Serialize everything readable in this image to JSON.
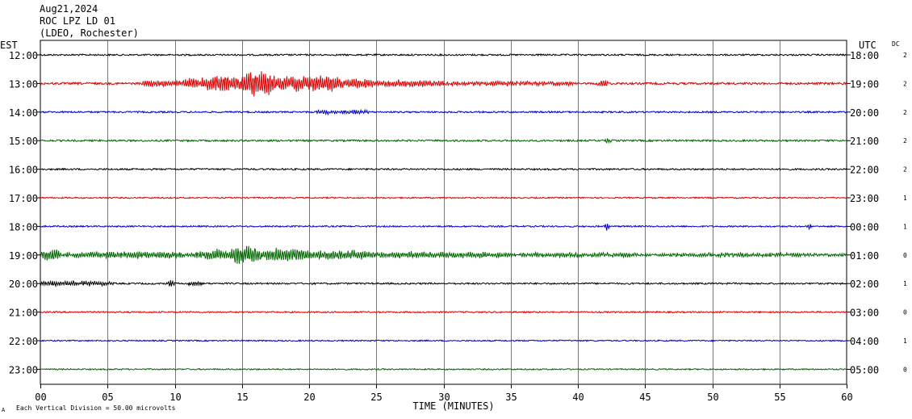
{
  "header": {
    "date": "Aug21,2024",
    "station": "ROC LPZ LD 01",
    "network": "(LDEO, Rochester)"
  },
  "chart_data": {
    "type": "line",
    "title": "ROC LPZ LD 01",
    "left_axis_label": "EST",
    "right_axis_label": "UTC",
    "dc_label": "DC",
    "xlabel": "TIME (MINUTES)",
    "xlim": [
      0,
      60
    ],
    "x_ticks": [
      "00",
      "05",
      "10",
      "15",
      "20",
      "25",
      "30",
      "35",
      "40",
      "45",
      "50",
      "55",
      "60"
    ],
    "grid": true,
    "scale_note": "Each Vertical Division =   50.00 microvolts",
    "colors": [
      "#000000",
      "#dd0000",
      "#0000cc",
      "#006600"
    ],
    "traces": [
      {
        "est": "12:00",
        "utc": "18:00",
        "dc": "2",
        "color": "#000000",
        "noise": 1.0,
        "events": []
      },
      {
        "est": "13:00",
        "utc": "19:00",
        "dc": "2",
        "color": "#dd0000",
        "noise": 1.3,
        "events": [
          {
            "start": 7.5,
            "end": 10.5,
            "amp": 4
          },
          {
            "start": 10.5,
            "end": 12.0,
            "amp": 6
          },
          {
            "start": 12.0,
            "end": 15.0,
            "amp": 11
          },
          {
            "start": 15.0,
            "end": 17.5,
            "amp": 16
          },
          {
            "start": 17.5,
            "end": 22.5,
            "amp": 10
          },
          {
            "start": 22.5,
            "end": 25.0,
            "amp": 6
          },
          {
            "start": 25.0,
            "end": 30.0,
            "amp": 4
          },
          {
            "start": 30.0,
            "end": 40.0,
            "amp": 2.5
          },
          {
            "start": 41.5,
            "end": 42.2,
            "amp": 4
          }
        ]
      },
      {
        "est": "14:00",
        "utc": "20:00",
        "dc": "2",
        "color": "#0000cc",
        "noise": 1.0,
        "events": [
          {
            "start": 20.5,
            "end": 24.5,
            "amp": 2.5
          }
        ]
      },
      {
        "est": "15:00",
        "utc": "21:00",
        "dc": "2",
        "color": "#006600",
        "noise": 1.1,
        "events": [
          {
            "start": 42.0,
            "end": 42.5,
            "amp": 3
          }
        ]
      },
      {
        "est": "16:00",
        "utc": "22:00",
        "dc": "2",
        "color": "#000000",
        "noise": 1.0,
        "events": []
      },
      {
        "est": "17:00",
        "utc": "23:00",
        "dc": "1",
        "color": "#dd0000",
        "noise": 0.8,
        "events": []
      },
      {
        "est": "18:00",
        "utc": "00:00",
        "dc": "1",
        "color": "#0000cc",
        "noise": 0.9,
        "events": [
          {
            "start": 42.0,
            "end": 42.3,
            "amp": 6
          },
          {
            "start": 57.0,
            "end": 57.4,
            "amp": 4
          }
        ]
      },
      {
        "est": "19:00",
        "utc": "01:00",
        "dc": "0",
        "color": "#006600",
        "noise": 1.2,
        "events": [
          {
            "start": 0.0,
            "end": 1.5,
            "amp": 7
          },
          {
            "start": 1.5,
            "end": 11.5,
            "amp": 4
          },
          {
            "start": 11.5,
            "end": 14.0,
            "amp": 7
          },
          {
            "start": 14.0,
            "end": 16.5,
            "amp": 12
          },
          {
            "start": 16.5,
            "end": 20.0,
            "amp": 9
          },
          {
            "start": 20.0,
            "end": 25.0,
            "amp": 6
          },
          {
            "start": 25.0,
            "end": 35.0,
            "amp": 4
          },
          {
            "start": 35.0,
            "end": 45.0,
            "amp": 2.5
          },
          {
            "start": 45.0,
            "end": 60.0,
            "amp": 2
          }
        ]
      },
      {
        "est": "20:00",
        "utc": "02:00",
        "dc": "1",
        "color": "#000000",
        "noise": 1.0,
        "events": [
          {
            "start": 0.0,
            "end": 5.5,
            "amp": 3
          },
          {
            "start": 9.5,
            "end": 10.0,
            "amp": 3.5
          },
          {
            "start": 11.0,
            "end": 12.0,
            "amp": 3
          }
        ]
      },
      {
        "est": "21:00",
        "utc": "03:00",
        "dc": "0",
        "color": "#dd0000",
        "noise": 0.9,
        "events": []
      },
      {
        "est": "22:00",
        "utc": "04:00",
        "dc": "1",
        "color": "#0000cc",
        "noise": 0.8,
        "events": []
      },
      {
        "est": "23:00",
        "utc": "05:00",
        "dc": "0",
        "color": "#006600",
        "noise": 0.8,
        "events": []
      }
    ]
  }
}
